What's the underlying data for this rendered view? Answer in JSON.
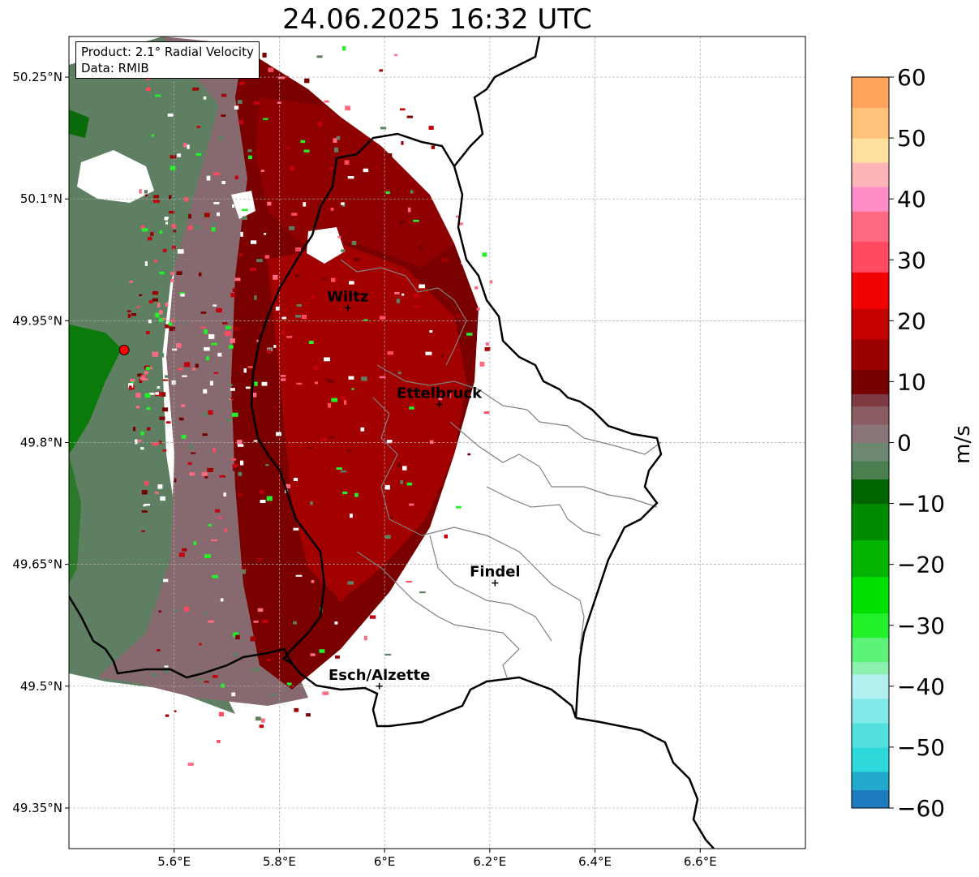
{
  "title": "24.06.2025 16:32 UTC",
  "info": {
    "product": "Product: 2.1° Radial Velocity",
    "data": "Data: RMIB"
  },
  "map": {
    "lon_range": [
      5.4,
      6.8
    ],
    "lat_range": [
      49.3,
      50.3
    ],
    "lon_ticks": [
      {
        "value": 5.6,
        "label": "5.6°E"
      },
      {
        "value": 5.8,
        "label": "5.8°E"
      },
      {
        "value": 6.0,
        "label": "6°E"
      },
      {
        "value": 6.2,
        "label": "6.2°E"
      },
      {
        "value": 6.4,
        "label": "6.4°E"
      },
      {
        "value": 6.6,
        "label": "6.6°E"
      }
    ],
    "lat_ticks": [
      {
        "value": 50.25,
        "label": "50.25°N"
      },
      {
        "value": 50.1,
        "label": "50.1°N"
      },
      {
        "value": 49.95,
        "label": "49.95°N"
      },
      {
        "value": 49.8,
        "label": "49.8°N"
      },
      {
        "value": 49.65,
        "label": "49.65°N"
      },
      {
        "value": 49.5,
        "label": "49.5°N"
      },
      {
        "value": 49.35,
        "label": "49.35°N"
      }
    ],
    "radar_site": {
      "lon": 5.505,
      "lat": 49.914,
      "color": "#ff0000"
    },
    "cities": [
      {
        "name": "Wiltz",
        "lon": 5.93,
        "lat": 49.966
      },
      {
        "name": "Ettelbruck",
        "lon": 6.104,
        "lat": 49.847
      },
      {
        "name": "Findel",
        "lon": 6.21,
        "lat": 49.627
      },
      {
        "name": "Esch/Alzette",
        "lon": 5.99,
        "lat": 49.5
      }
    ]
  },
  "colorbar": {
    "label": "m/s",
    "min": -60,
    "max": 60,
    "ticks": [
      {
        "value": 60,
        "label": "60"
      },
      {
        "value": 50,
        "label": "50"
      },
      {
        "value": 40,
        "label": "40"
      },
      {
        "value": 30,
        "label": "30"
      },
      {
        "value": 20,
        "label": "20"
      },
      {
        "value": 10,
        "label": "10"
      },
      {
        "value": 0,
        "label": "0"
      },
      {
        "value": -10,
        "label": "−10"
      },
      {
        "value": -20,
        "label": "−20"
      },
      {
        "value": -30,
        "label": "−30"
      },
      {
        "value": -40,
        "label": "−40"
      },
      {
        "value": -50,
        "label": "−50"
      },
      {
        "value": -60,
        "label": "−60"
      }
    ],
    "stops": [
      {
        "from": -60,
        "to": -57,
        "color": "#1f7bbf"
      },
      {
        "from": -57,
        "to": -54,
        "color": "#23a9cc"
      },
      {
        "from": -54,
        "to": -50,
        "color": "#2ed9dc"
      },
      {
        "from": -50,
        "to": -46,
        "color": "#55e0e0"
      },
      {
        "from": -46,
        "to": -42,
        "color": "#83e8e8"
      },
      {
        "from": -42,
        "to": -38,
        "color": "#b2efef"
      },
      {
        "from": -38,
        "to": -36,
        "color": "#8df2b0"
      },
      {
        "from": -36,
        "to": -32,
        "color": "#5ef27a"
      },
      {
        "from": -32,
        "to": -28,
        "color": "#22f02a"
      },
      {
        "from": -28,
        "to": -22,
        "color": "#00e000"
      },
      {
        "from": -22,
        "to": -16,
        "color": "#00b400"
      },
      {
        "from": -16,
        "to": -10,
        "color": "#008c00"
      },
      {
        "from": -10,
        "to": -6,
        "color": "#006400"
      },
      {
        "from": -6,
        "to": -3,
        "color": "#4a8050"
      },
      {
        "from": -3,
        "to": 0,
        "color": "#6d8870"
      },
      {
        "from": 0,
        "to": 3,
        "color": "#8a7678"
      },
      {
        "from": 3,
        "to": 6,
        "color": "#8a5c63"
      },
      {
        "from": 6,
        "to": 8,
        "color": "#7d3a43"
      },
      {
        "from": 8,
        "to": 12,
        "color": "#760000"
      },
      {
        "from": 12,
        "to": 17,
        "color": "#9a0000"
      },
      {
        "from": 17,
        "to": 22,
        "color": "#c40000"
      },
      {
        "from": 22,
        "to": 28,
        "color": "#f00000"
      },
      {
        "from": 28,
        "to": 33,
        "color": "#ff4a60"
      },
      {
        "from": 33,
        "to": 38,
        "color": "#ff6a82"
      },
      {
        "from": 38,
        "to": 42,
        "color": "#ff8ec8"
      },
      {
        "from": 42,
        "to": 46,
        "color": "#ffb4b8"
      },
      {
        "from": 46,
        "to": 50,
        "color": "#ffe09c"
      },
      {
        "from": 50,
        "to": 55,
        "color": "#ffc27a"
      },
      {
        "from": 55,
        "to": 60,
        "color": "#ffa45a"
      }
    ]
  },
  "colors": {
    "outbound_dark": "#7a0000",
    "outbound_mid": "#a00000",
    "mauve": "#876a70",
    "inbound_gray_green": "#5f7f62",
    "inbound_green": "#006a00",
    "border": "#000000",
    "canton": "#808080"
  }
}
